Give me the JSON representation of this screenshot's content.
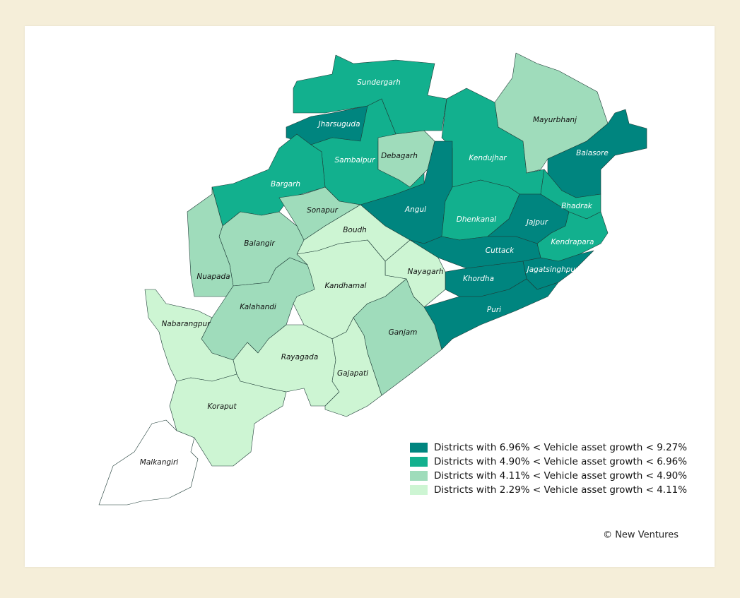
{
  "map": {
    "districts": [
      {
        "name": "Sundergarh",
        "color": "#12b08e"
      },
      {
        "name": "Jharsuguda",
        "color": "#00857f"
      },
      {
        "name": "Sambalpur",
        "color": "#12b08e"
      },
      {
        "name": "Debagarh",
        "color": "#9fdcbb"
      },
      {
        "name": "Kendujhar",
        "color": "#12b08e"
      },
      {
        "name": "Mayurbhanj",
        "color": "#9fdcbb"
      },
      {
        "name": "Balasore",
        "color": "#00857f"
      },
      {
        "name": "Bargarh",
        "color": "#12b08e"
      },
      {
        "name": "Sonapur",
        "color": "#9fdcbb"
      },
      {
        "name": "Angul",
        "color": "#00857f"
      },
      {
        "name": "Dhenkanal",
        "color": "#12b08e"
      },
      {
        "name": "Jajpur",
        "color": "#00857f"
      },
      {
        "name": "Bhadrak",
        "color": "#12b08e"
      },
      {
        "name": "Kendrapara",
        "color": "#12b08e"
      },
      {
        "name": "Cuttack",
        "color": "#00857f"
      },
      {
        "name": "Jagatsinghpur",
        "color": "#00857f"
      },
      {
        "name": "Khordha",
        "color": "#00857f"
      },
      {
        "name": "Puri",
        "color": "#00857f"
      },
      {
        "name": "Nayagarh",
        "color": "#cdf5d3"
      },
      {
        "name": "Boudh",
        "color": "#cdf5d3"
      },
      {
        "name": "Kandhamal",
        "color": "#cdf5d3"
      },
      {
        "name": "Ganjam",
        "color": "#9fdcbb"
      },
      {
        "name": "Balangir",
        "color": "#9fdcbb"
      },
      {
        "name": "Nuapada",
        "color": "#9fdcbb"
      },
      {
        "name": "Kalahandi",
        "color": "#9fdcbb"
      },
      {
        "name": "Nabarangpur",
        "color": "#cdf5d3"
      },
      {
        "name": "Rayagada",
        "color": "#cdf5d3"
      },
      {
        "name": "Gajapati",
        "color": "#cdf5d3"
      },
      {
        "name": "Koraput",
        "color": "#cdf5d3"
      },
      {
        "name": "Malkangiri",
        "color": "#ffffff"
      }
    ],
    "legend": [
      {
        "label": "Districts with 6.96% < Vehicle asset growth < 9.27%",
        "color": "#00857f"
      },
      {
        "label": "Districts with 4.90% < Vehicle asset growth < 6.96%",
        "color": "#12b08e"
      },
      {
        "label": "Districts with 4.11% < Vehicle asset growth < 4.90%",
        "color": "#9fdcbb"
      },
      {
        "label": "Districts with 2.29% < Vehicle asset growth < 4.11%",
        "color": "#cdf5d3"
      }
    ],
    "credit": "© New Ventures"
  }
}
